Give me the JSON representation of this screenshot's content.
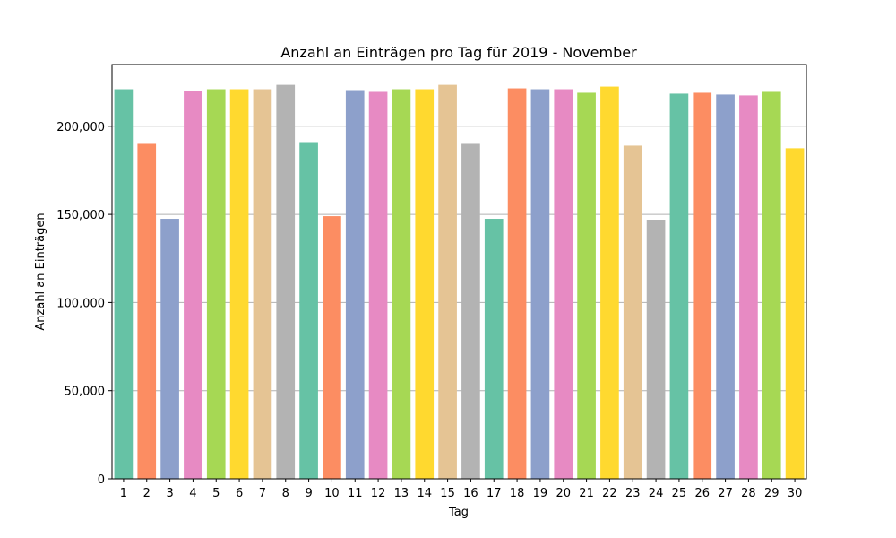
{
  "chart_data": {
    "type": "bar",
    "title": "Anzahl an Einträgen pro Tag für 2019 - November",
    "xlabel": "Tag",
    "ylabel": "Anzahl an Einträgen",
    "ylim": [
      0,
      235000
    ],
    "yticks": [
      0,
      50000,
      100000,
      150000,
      200000
    ],
    "ytick_labels": [
      "0",
      "50,000",
      "100,000",
      "150,000",
      "200,000"
    ],
    "grid": "horizontal",
    "categories": [
      "1",
      "2",
      "3",
      "4",
      "5",
      "6",
      "7",
      "8",
      "9",
      "10",
      "11",
      "12",
      "13",
      "14",
      "15",
      "16",
      "17",
      "18",
      "19",
      "20",
      "21",
      "22",
      "23",
      "24",
      "25",
      "26",
      "27",
      "28",
      "29",
      "30"
    ],
    "values": [
      221000,
      190000,
      147500,
      220000,
      221000,
      221000,
      221000,
      223500,
      191000,
      149000,
      220500,
      219500,
      221000,
      221000,
      223500,
      190000,
      147500,
      221500,
      221000,
      221000,
      219000,
      222500,
      189000,
      147000,
      218500,
      219000,
      218000,
      217500,
      219500,
      187500
    ],
    "palette": [
      "#66c2a5",
      "#fc8d62",
      "#8da0cb",
      "#e78ac3",
      "#a6d854",
      "#ffd92f",
      "#e5c494",
      "#b3b3b3"
    ]
  }
}
